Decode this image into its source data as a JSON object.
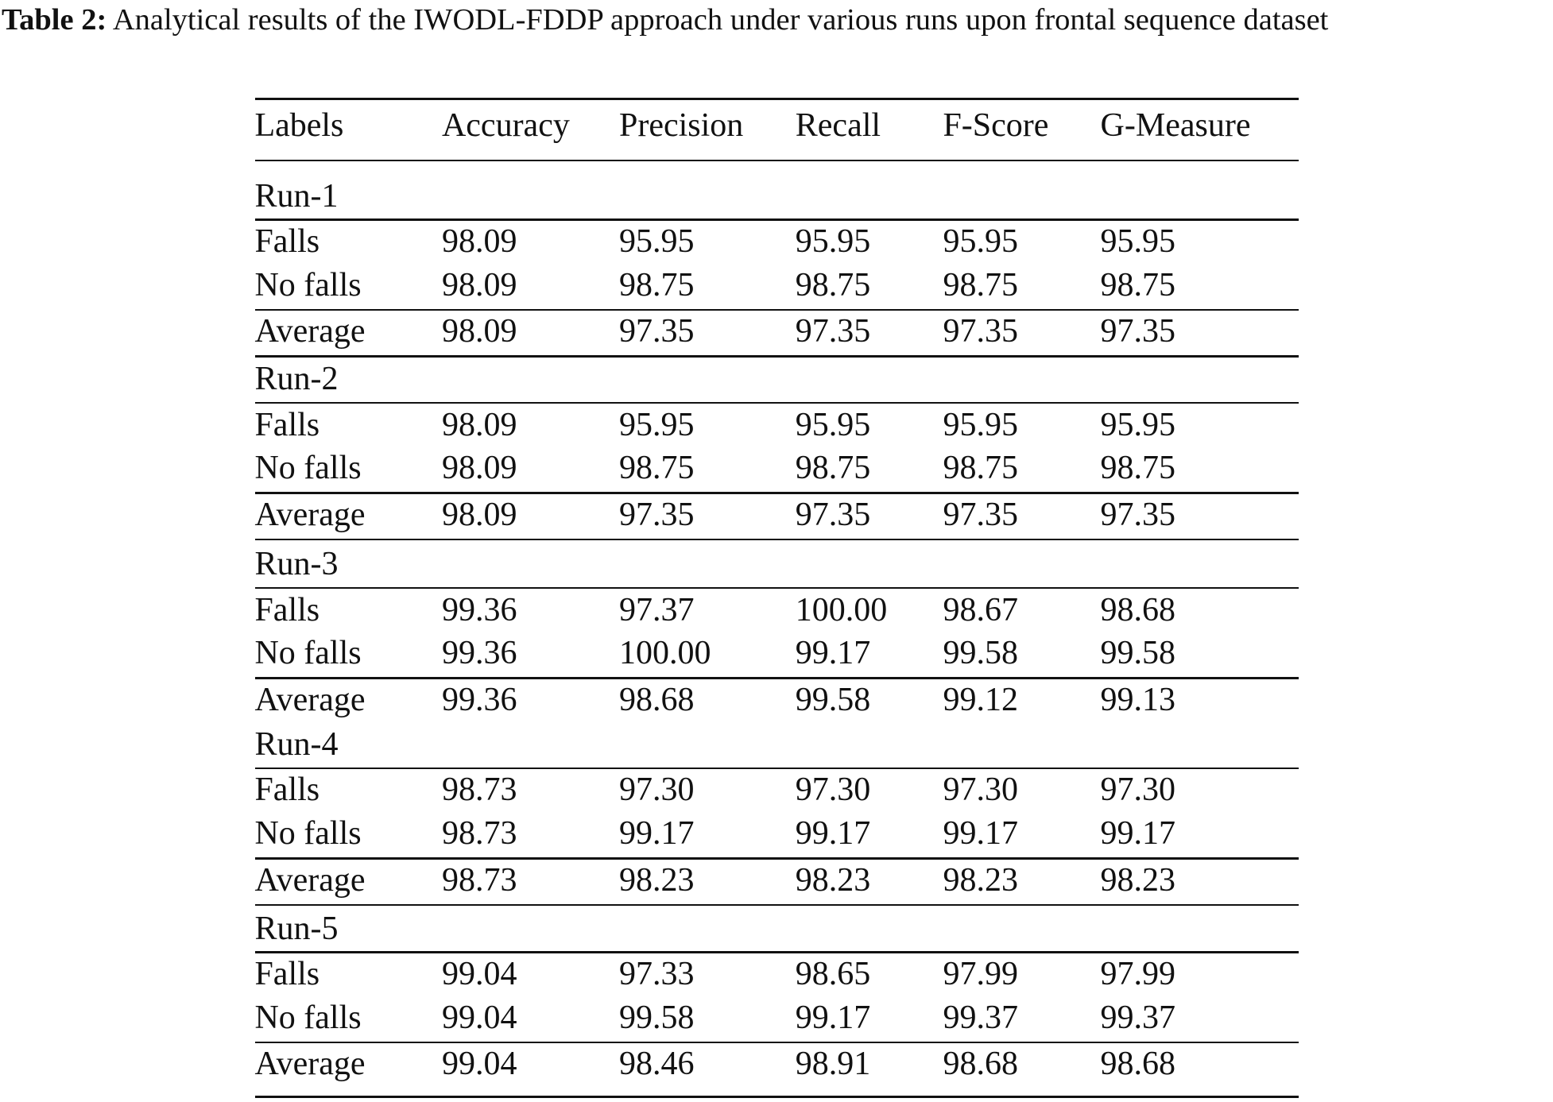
{
  "caption": {
    "label": "Table 2:",
    "text": "Analytical results of the IWODL-FDDP approach under various runs upon frontal sequence dataset"
  },
  "table": {
    "header": [
      "Labels",
      "Accuracy",
      "Precision",
      "Recall",
      "F-Score",
      "G-Measure"
    ],
    "groups": [
      {
        "title": "Run-1",
        "rows": [
          [
            "Falls",
            "98.09",
            "95.95",
            "95.95",
            "95.95",
            "95.95"
          ],
          [
            "No falls",
            "98.09",
            "98.75",
            "98.75",
            "98.75",
            "98.75"
          ],
          [
            "Average",
            "98.09",
            "97.35",
            "97.35",
            "97.35",
            "97.35"
          ]
        ]
      },
      {
        "title": "Run-2",
        "rows": [
          [
            "Falls",
            "98.09",
            "95.95",
            "95.95",
            "95.95",
            "95.95"
          ],
          [
            "No falls",
            "98.09",
            "98.75",
            "98.75",
            "98.75",
            "98.75"
          ],
          [
            "Average",
            "98.09",
            "97.35",
            "97.35",
            "97.35",
            "97.35"
          ]
        ]
      },
      {
        "title": "Run-3",
        "rows": [
          [
            "Falls",
            "99.36",
            "97.37",
            "100.00",
            "98.67",
            "98.68"
          ],
          [
            "No falls",
            "99.36",
            "100.00",
            "99.17",
            "99.58",
            "99.58"
          ],
          [
            "Average",
            "99.36",
            "98.68",
            "99.58",
            "99.12",
            "99.13"
          ]
        ]
      },
      {
        "title": "Run-4",
        "rows": [
          [
            "Falls",
            "98.73",
            "97.30",
            "97.30",
            "97.30",
            "97.30"
          ],
          [
            "No falls",
            "98.73",
            "99.17",
            "99.17",
            "99.17",
            "99.17"
          ],
          [
            "Average",
            "98.73",
            "98.23",
            "98.23",
            "98.23",
            "98.23"
          ]
        ]
      },
      {
        "title": "Run-5",
        "rows": [
          [
            "Falls",
            "99.04",
            "97.33",
            "98.65",
            "97.99",
            "97.99"
          ],
          [
            "No falls",
            "99.04",
            "99.58",
            "99.17",
            "99.37",
            "99.37"
          ],
          [
            "Average",
            "99.04",
            "98.46",
            "98.91",
            "98.68",
            "98.68"
          ]
        ]
      }
    ]
  }
}
